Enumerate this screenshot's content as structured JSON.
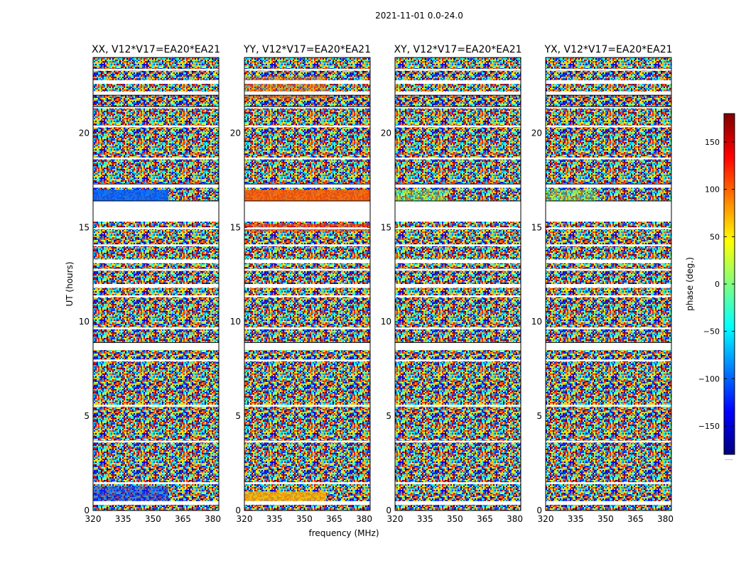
{
  "figure": {
    "suptitle": "2021-11-01 0.0-24.0"
  },
  "chart_data": {
    "type": "heatmap",
    "xlabel": "frequency (MHz)",
    "ylabel": "UT (hours)",
    "xlim": [
      320,
      383
    ],
    "ylim": [
      0,
      24
    ],
    "x_ticks": [
      320,
      335,
      350,
      365,
      380
    ],
    "y_ticks": [
      0,
      5,
      10,
      15,
      20
    ],
    "colorbar": {
      "label": "phase (deg.)",
      "range": [
        -180,
        180
      ],
      "ticks": [
        150,
        100,
        50,
        0,
        -50,
        -100,
        -150
      ],
      "tick_labels": [
        "150",
        "100",
        "50",
        "0",
        "−50",
        "−100",
        "−150"
      ],
      "colormap": [
        "#00007f",
        "#0000ff",
        "#007fff",
        "#00ffff",
        "#7fff7f",
        "#ffff00",
        "#ff7f00",
        "#ff0000",
        "#7f0000"
      ],
      "footnote": "......"
    },
    "panels": [
      {
        "title": "XX, V12*V17=EA20*EA21",
        "show_ylabel": true,
        "show_xlabel": false,
        "hint": "blue-early"
      },
      {
        "title": "YY, V12*V17=EA20*EA21",
        "show_ylabel": false,
        "show_xlabel": true,
        "hint": "red-early"
      },
      {
        "title": "XY, V12*V17=EA20*EA21",
        "show_ylabel": false,
        "show_xlabel": false,
        "hint": "mixed"
      },
      {
        "title": "YX, V12*V17=EA20*EA21",
        "show_ylabel": false,
        "show_xlabel": false,
        "hint": "mixed"
      }
    ],
    "gaps_hours": [
      [
        0.3,
        0.5
      ],
      [
        1.4,
        1.5
      ],
      [
        3.6,
        3.7
      ],
      [
        5.5,
        5.6
      ],
      [
        7.9,
        8.0
      ],
      [
        8.5,
        8.9
      ],
      [
        9.6,
        9.7
      ],
      [
        11.3,
        11.4
      ],
      [
        11.8,
        12.0
      ],
      [
        12.7,
        12.8
      ],
      [
        13.1,
        13.3
      ],
      [
        14.0,
        14.1
      ],
      [
        14.9,
        15.0
      ],
      [
        15.3,
        16.4
      ],
      [
        17.1,
        17.3
      ],
      [
        18.6,
        18.7
      ],
      [
        20.3,
        20.4
      ],
      [
        21.3,
        21.4
      ],
      [
        22.0,
        22.2
      ],
      [
        22.6,
        22.8
      ],
      [
        23.3,
        23.4
      ]
    ]
  }
}
